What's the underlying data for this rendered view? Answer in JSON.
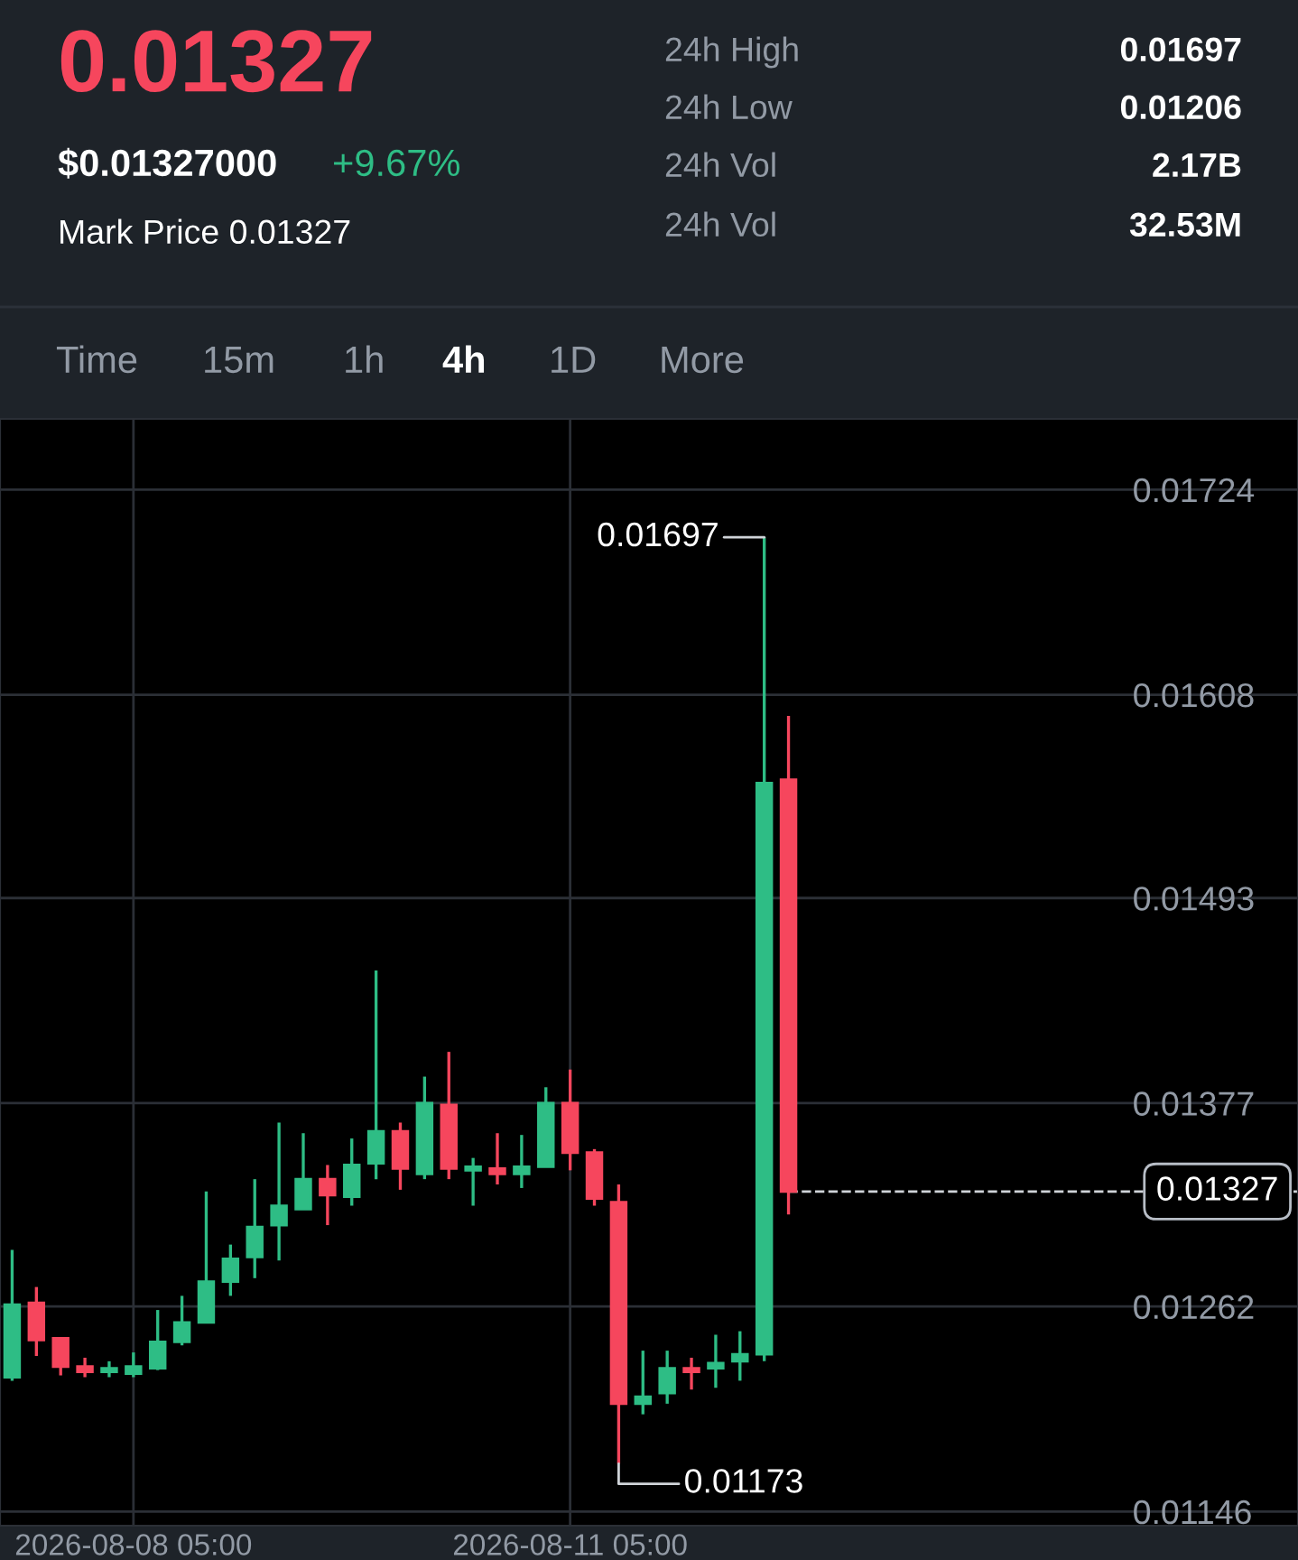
{
  "chart_data": {
    "type": "candlestick",
    "title": "0.01327",
    "annotations": [
      "$0.01327000",
      "+9.67%",
      "Mark Price 0.01327",
      "24h High",
      "0.01697",
      "24h Low",
      "0.01206",
      "24h Vol",
      "2.17B",
      "24h Vol",
      "32.53M",
      "Time",
      "15m",
      "1h",
      "4h",
      "1D",
      "More",
      {
        "text": "0.01697",
        "x": "2026-08-12T13:00",
        "y": 0.01697
      },
      {
        "text": "0.01173",
        "x": "2026-08-11T13:00",
        "y": 0.01173
      }
    ],
    "x": [
      "2026-08-07T09:00",
      "2026-08-07T13:00",
      "2026-08-07T17:00",
      "2026-08-07T21:00",
      "2026-08-08T01:00",
      "2026-08-08T05:00",
      "2026-08-08T09:00",
      "2026-08-08T13:00",
      "2026-08-08T17:00",
      "2026-08-08T21:00",
      "2026-08-09T01:00",
      "2026-08-09T05:00",
      "2026-08-09T09:00",
      "2026-08-09T13:00",
      "2026-08-09T17:00",
      "2026-08-09T21:00",
      "2026-08-10T01:00",
      "2026-08-10T05:00",
      "2026-08-10T09:00",
      "2026-08-10T13:00",
      "2026-08-10T17:00",
      "2026-08-10T21:00",
      "2026-08-11T01:00",
      "2026-08-11T05:00",
      "2026-08-11T09:00",
      "2026-08-11T13:00",
      "2026-08-11T17:00",
      "2026-08-11T21:00",
      "2026-08-12T01:00",
      "2026-08-12T05:00",
      "2026-08-12T09:00",
      "2026-08-12T13:00",
      "2026-08-12T17:00"
    ],
    "ohlc": [
      [
        0.01222,
        0.01294,
        0.0122,
        0.01263
      ],
      [
        0.01264,
        0.01273,
        0.01234,
        0.01243
      ],
      [
        0.01244,
        0.01244,
        0.01223,
        0.01228
      ],
      [
        0.01228,
        0.01233,
        0.01222,
        0.01225
      ],
      [
        0.01225,
        0.01231,
        0.01222,
        0.01227
      ],
      [
        0.01224,
        0.01236,
        0.01222,
        0.01228
      ],
      [
        0.01227,
        0.0126,
        0.01226,
        0.01242
      ],
      [
        0.01242,
        0.01268,
        0.0124,
        0.01253
      ],
      [
        0.01253,
        0.01327,
        0.01253,
        0.01276
      ],
      [
        0.01276,
        0.01297,
        0.01268,
        0.01289
      ],
      [
        0.0129,
        0.01334,
        0.01278,
        0.01307
      ],
      [
        0.01308,
        0.01366,
        0.01288,
        0.01319
      ],
      [
        0.01317,
        0.0136,
        0.01317,
        0.01334
      ],
      [
        0.01334,
        0.01342,
        0.01308,
        0.01325
      ],
      [
        0.01324,
        0.01357,
        0.01319,
        0.01342
      ],
      [
        0.01343,
        0.01452,
        0.01334,
        0.01361
      ],
      [
        0.01361,
        0.01366,
        0.01328,
        0.0134
      ],
      [
        0.01337,
        0.01392,
        0.01334,
        0.01377
      ],
      [
        0.01376,
        0.01406,
        0.01334,
        0.0134
      ],
      [
        0.01339,
        0.01346,
        0.01319,
        0.01341
      ],
      [
        0.0134,
        0.0136,
        0.01331,
        0.01337
      ],
      [
        0.01337,
        0.01359,
        0.01329,
        0.01341
      ],
      [
        0.01341,
        0.01386,
        0.01341,
        0.01377
      ],
      [
        0.01377,
        0.01396,
        0.01339,
        0.01349
      ],
      [
        0.01349,
        0.01351,
        0.01319,
        0.01323
      ],
      [
        0.01321,
        0.01331,
        0.01173,
        0.01207
      ],
      [
        0.01207,
        0.01237,
        0.01201,
        0.01211
      ],
      [
        0.01213,
        0.01237,
        0.01207,
        0.01227
      ],
      [
        0.01227,
        0.01233,
        0.01215,
        0.01225
      ],
      [
        0.01227,
        0.01246,
        0.01216,
        0.0123
      ],
      [
        0.01231,
        0.01248,
        0.0122,
        0.01235
      ],
      [
        0.01235,
        0.01697,
        0.01231,
        0.01558
      ],
      [
        0.0156,
        0.01596,
        0.01314,
        0.01327
      ]
    ],
    "xlim": [
      "2026-08-07T07:00",
      "2026-08-16T05:00"
    ],
    "xticks": [
      {
        "value": "2026-08-08T05:00",
        "label": "2026-08-08 05:00"
      },
      {
        "value": "2026-08-11T05:00",
        "label": "2026-08-11 05:00"
      }
    ],
    "ylim": [
      0.01138,
      0.01764
    ],
    "yticks": [
      0.01146,
      0.01262,
      0.01377,
      0.01493,
      0.01608,
      0.01724
    ],
    "ref_lines": [
      {
        "axis": "y",
        "value": 0.01327,
        "label": "0.01327",
        "line_style": "dashed"
      }
    ],
    "grid": true
  }
}
